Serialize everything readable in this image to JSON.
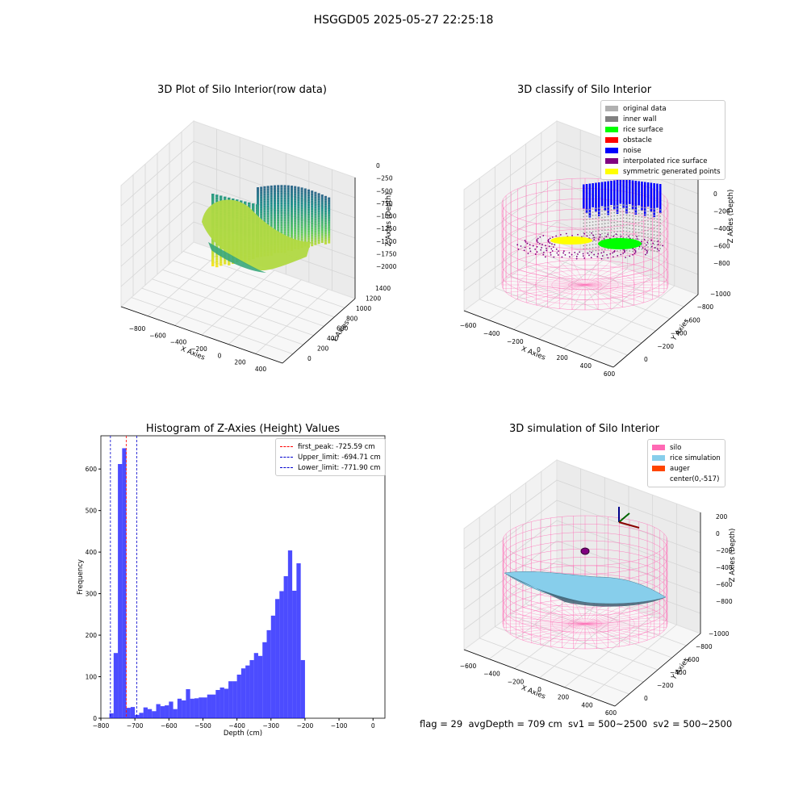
{
  "suptitle": "HSGGD05 2025-05-27 22:25:18",
  "footer": "flag = 29  avgDepth = 709 cm  sv1 = 500~2500  sv2 = 500~2500",
  "colors": {
    "silo": "#ff69b4",
    "rice": "#87ceeb",
    "hist": "#0000ff",
    "peak": "#ff0000",
    "limit": "#0000cd"
  },
  "chart_data": [
    {
      "type": "scatter3d",
      "title": "3D Plot of Silo Interior(row data)",
      "xlabel": "X Axies",
      "ylabel": "Y Axies",
      "zlabel": "Z Axies (Depth)",
      "xticks": [
        "−800",
        "−600",
        "−400",
        "−200",
        "0",
        "200",
        "400"
      ],
      "yticks": [
        "0",
        "200",
        "400",
        "600",
        "800",
        "1000",
        "1200",
        "1400"
      ],
      "zticks": [
        "0",
        "−250",
        "−500",
        "−750",
        "−1000",
        "−1250",
        "−1500",
        "−1750",
        "−2000"
      ],
      "colormap": "viridis"
    },
    {
      "type": "scatter3d",
      "title": "3D classify of Silo Interior",
      "xlabel": "X Axies",
      "ylabel": "Y Axies",
      "zlabel": "Z Axies (Depth)",
      "xticks": [
        "−600",
        "−400",
        "−200",
        "0",
        "200",
        "400",
        "600"
      ],
      "yticks": [
        "0",
        "−200",
        "−400",
        "−600",
        "−800",
        "−1000"
      ],
      "zticks": [
        "0",
        "−200",
        "−400",
        "−600",
        "−800"
      ],
      "legend": [
        {
          "label": "original data",
          "color": "#b0b0b0"
        },
        {
          "label": "inner wall",
          "color": "#808080"
        },
        {
          "label": "rice surface",
          "color": "#00ff00"
        },
        {
          "label": "obstacle",
          "color": "#ff0000"
        },
        {
          "label": "noise",
          "color": "#0000ff"
        },
        {
          "label": "interpolated rice surface",
          "color": "#800080"
        },
        {
          "label": "symmetric generated points",
          "color": "#ffff00"
        }
      ]
    },
    {
      "type": "bar",
      "title": "Histogram of Z-Axies (Height) Values",
      "xlabel": "Depth (cm)",
      "ylabel": "Frequency",
      "xlim": [
        -800,
        35
      ],
      "ylim": [
        0,
        680
      ],
      "xticks": [
        -800,
        -700,
        -600,
        -500,
        -400,
        -300,
        -200,
        -100,
        0
      ],
      "yticks": [
        0,
        100,
        200,
        300,
        400,
        500,
        600
      ],
      "bin_start": -775,
      "bin_width": 12.5,
      "values": [
        12,
        157,
        612,
        650,
        25,
        27,
        8,
        13,
        26,
        22,
        17,
        34,
        29,
        31,
        40,
        22,
        47,
        43,
        70,
        47,
        48,
        50,
        50,
        57,
        57,
        68,
        74,
        71,
        89,
        89,
        105,
        120,
        127,
        140,
        157,
        150,
        183,
        212,
        247,
        287,
        306,
        342,
        404,
        307,
        373,
        140
      ],
      "vlines": [
        {
          "label": "first_peak: -725.59 cm",
          "x": -725.59,
          "color": "#ff0000"
        },
        {
          "label": "Upper_limit: -694.71 cm",
          "x": -694.71,
          "color": "#0000cd"
        },
        {
          "label": "Lower_limit: -771.90 cm",
          "x": -771.9,
          "color": "#0000cd"
        }
      ]
    },
    {
      "type": "surface3d",
      "title": "3D simulation of Silo Interior",
      "xlabel": "X Axies",
      "ylabel": "Y Axies",
      "zlabel": "Z Axies (Depth)",
      "xticks": [
        "−600",
        "−400",
        "−200",
        "0",
        "200",
        "400",
        "600"
      ],
      "yticks": [
        "0",
        "−200",
        "−400",
        "−600",
        "−800",
        "−1000"
      ],
      "zticks": [
        "200",
        "0",
        "−200",
        "−400",
        "−600",
        "−800"
      ],
      "legend": [
        {
          "label": "silo",
          "color": "#ff69b4"
        },
        {
          "label": "rice simulation",
          "color": "#87ceeb"
        },
        {
          "label": "auger",
          "color": "#ff4500"
        },
        {
          "label": "center(0,-517)",
          "color": "#ffffff"
        }
      ]
    }
  ]
}
